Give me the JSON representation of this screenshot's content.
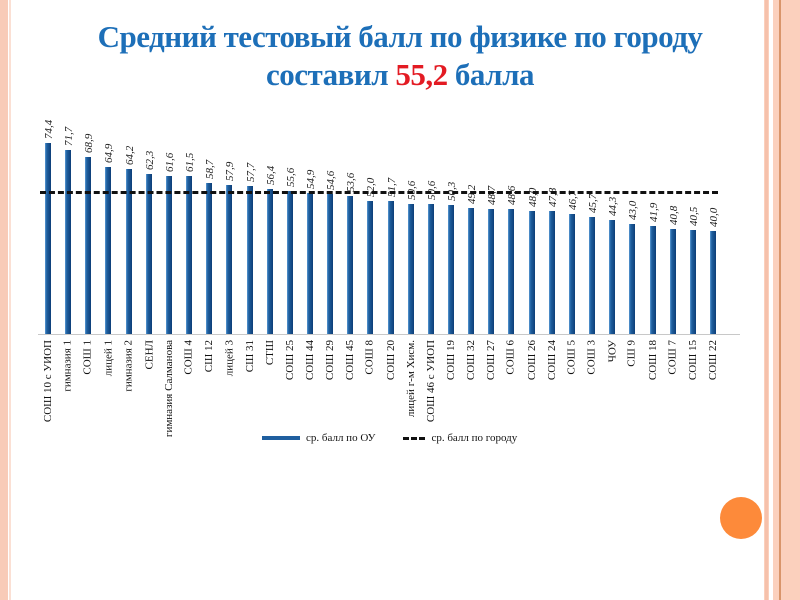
{
  "title": {
    "line1": "Средний тестовый балл по физике по городу",
    "line2_prefix": "составил ",
    "line2_value": "55,2",
    "line2_suffix": " балла"
  },
  "colors": {
    "title": "#1d6fb8",
    "highlight": "#e31b23",
    "bar": "#1f5f9f",
    "avg_line": "#111111",
    "accent_orange": "#fd8a3a"
  },
  "legend": {
    "series_label": "ср. балл по ОУ",
    "avg_label": "ср. балл по городу"
  },
  "chart_data": {
    "type": "bar",
    "title": "Средний тестовый балл по физике по городу составил 55,2 балла",
    "xlabel": "",
    "ylabel": "",
    "ylim": [
      0,
      80
    ],
    "grid": false,
    "legend_position": "bottom",
    "categories": [
      "СОШ 10 с УИОП",
      "гимназия 1",
      "СОШ 1",
      "лицей 1",
      "гимназия 2",
      "СЕНЛ",
      "гимназия Салманова",
      "СОШ 4",
      "СШ 12",
      "лицей 3",
      "СШ 31",
      "СТШ",
      "СОШ 25",
      "СОШ 44",
      "СОШ 29",
      "СОШ 45",
      "СОШ 8",
      "СОШ 20",
      "лицей г-м Хисм.",
      "СОШ 46 с УИОП",
      "СОШ 19",
      "СОШ 32",
      "СОШ 27",
      "СОШ 6",
      "СОШ 26",
      "СОШ 24",
      "СОШ 5",
      "СОШ 3",
      "ЧОУ",
      "СШ 9",
      "СОШ 18",
      "СОШ 7",
      "СОШ 15",
      "СОШ 22"
    ],
    "series": [
      {
        "name": "ср. балл по ОУ",
        "type": "bar",
        "values": [
          74.4,
          71.7,
          68.9,
          64.9,
          64.2,
          62.3,
          61.6,
          61.5,
          58.7,
          57.9,
          57.7,
          56.4,
          55.6,
          54.9,
          54.6,
          53.6,
          52.0,
          51.7,
          50.6,
          50.6,
          50.3,
          49.2,
          48.7,
          48.6,
          48.0,
          47.8,
          46.7,
          45.7,
          44.3,
          43.0,
          41.9,
          40.8,
          40.5,
          40.0
        ],
        "labels": [
          "74,4",
          "71,7",
          "68,9",
          "64,9",
          "64,2",
          "62,3",
          "61,6",
          "61,5",
          "58,7",
          "57,9",
          "57,7",
          "56,4",
          "55,6",
          "54,9",
          "54,6",
          "53,6",
          "52,0",
          "51,7",
          "50,6",
          "50,6",
          "50,3",
          "49,2",
          "48,7",
          "48,6",
          "48,0",
          "47,8",
          "46,7",
          "45,7",
          "44,3",
          "43,0",
          "41,9",
          "40,8",
          "40,5",
          "40,0"
        ]
      },
      {
        "name": "ср. балл по городу",
        "type": "line",
        "style": "dashed",
        "value": 55.2
      }
    ]
  }
}
